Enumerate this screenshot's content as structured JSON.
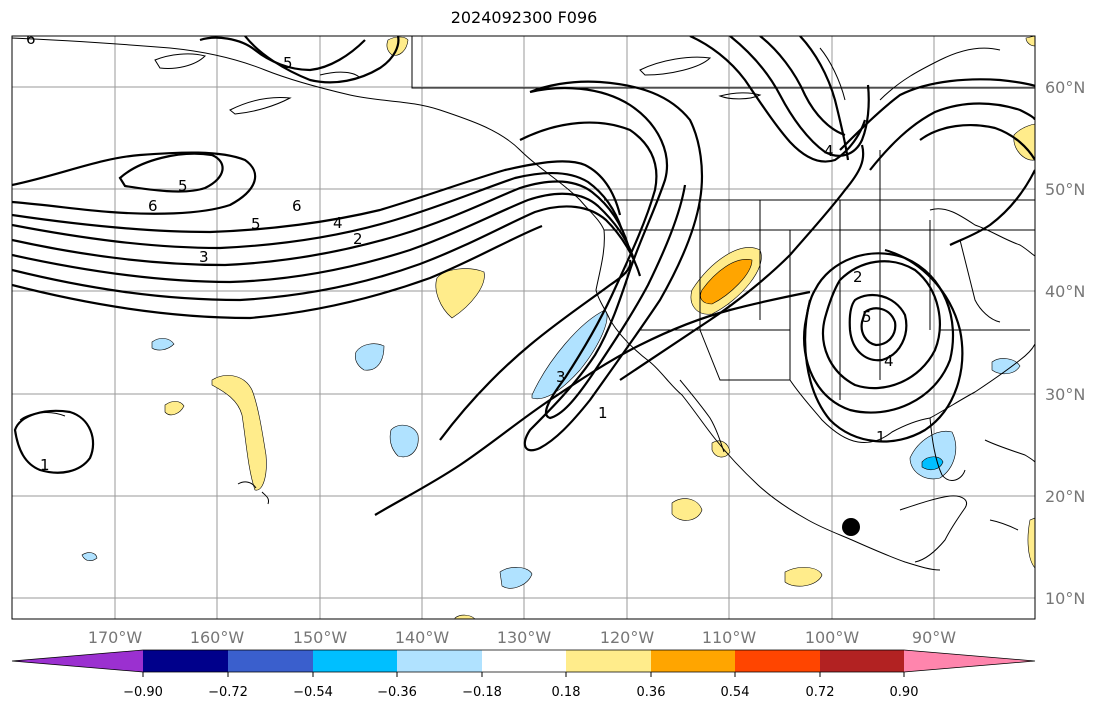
{
  "title": "2024092300 F096",
  "map": {
    "lat_labels": [
      "60°N",
      "50°N",
      "40°N",
      "30°N",
      "20°N",
      "10°N"
    ],
    "lon_labels": [
      "170°W",
      "160°W",
      "150°W",
      "140°W",
      "130°W",
      "120°W",
      "110°W",
      "100°W",
      "90°W"
    ],
    "contour_labels": [
      "6",
      "5",
      "5",
      "6",
      "6",
      "5",
      "4",
      "2",
      "3",
      "3",
      "1",
      "2",
      "5",
      "4",
      "1",
      "1",
      "4"
    ],
    "marker": "storm-center-dot"
  },
  "colorbar": {
    "tick_labels": [
      "−0.90",
      "−0.72",
      "−0.54",
      "−0.36",
      "−0.18",
      "0.18",
      "0.36",
      "0.54",
      "0.72",
      "0.90"
    ],
    "colors": [
      "#9b30d0",
      "#00008b",
      "#3a5fcd",
      "#00bfff",
      "#b0e2ff",
      "#ffffff",
      "#ffec8b",
      "#ffa500",
      "#ff4500",
      "#b22222",
      "#ff85ad"
    ]
  }
}
